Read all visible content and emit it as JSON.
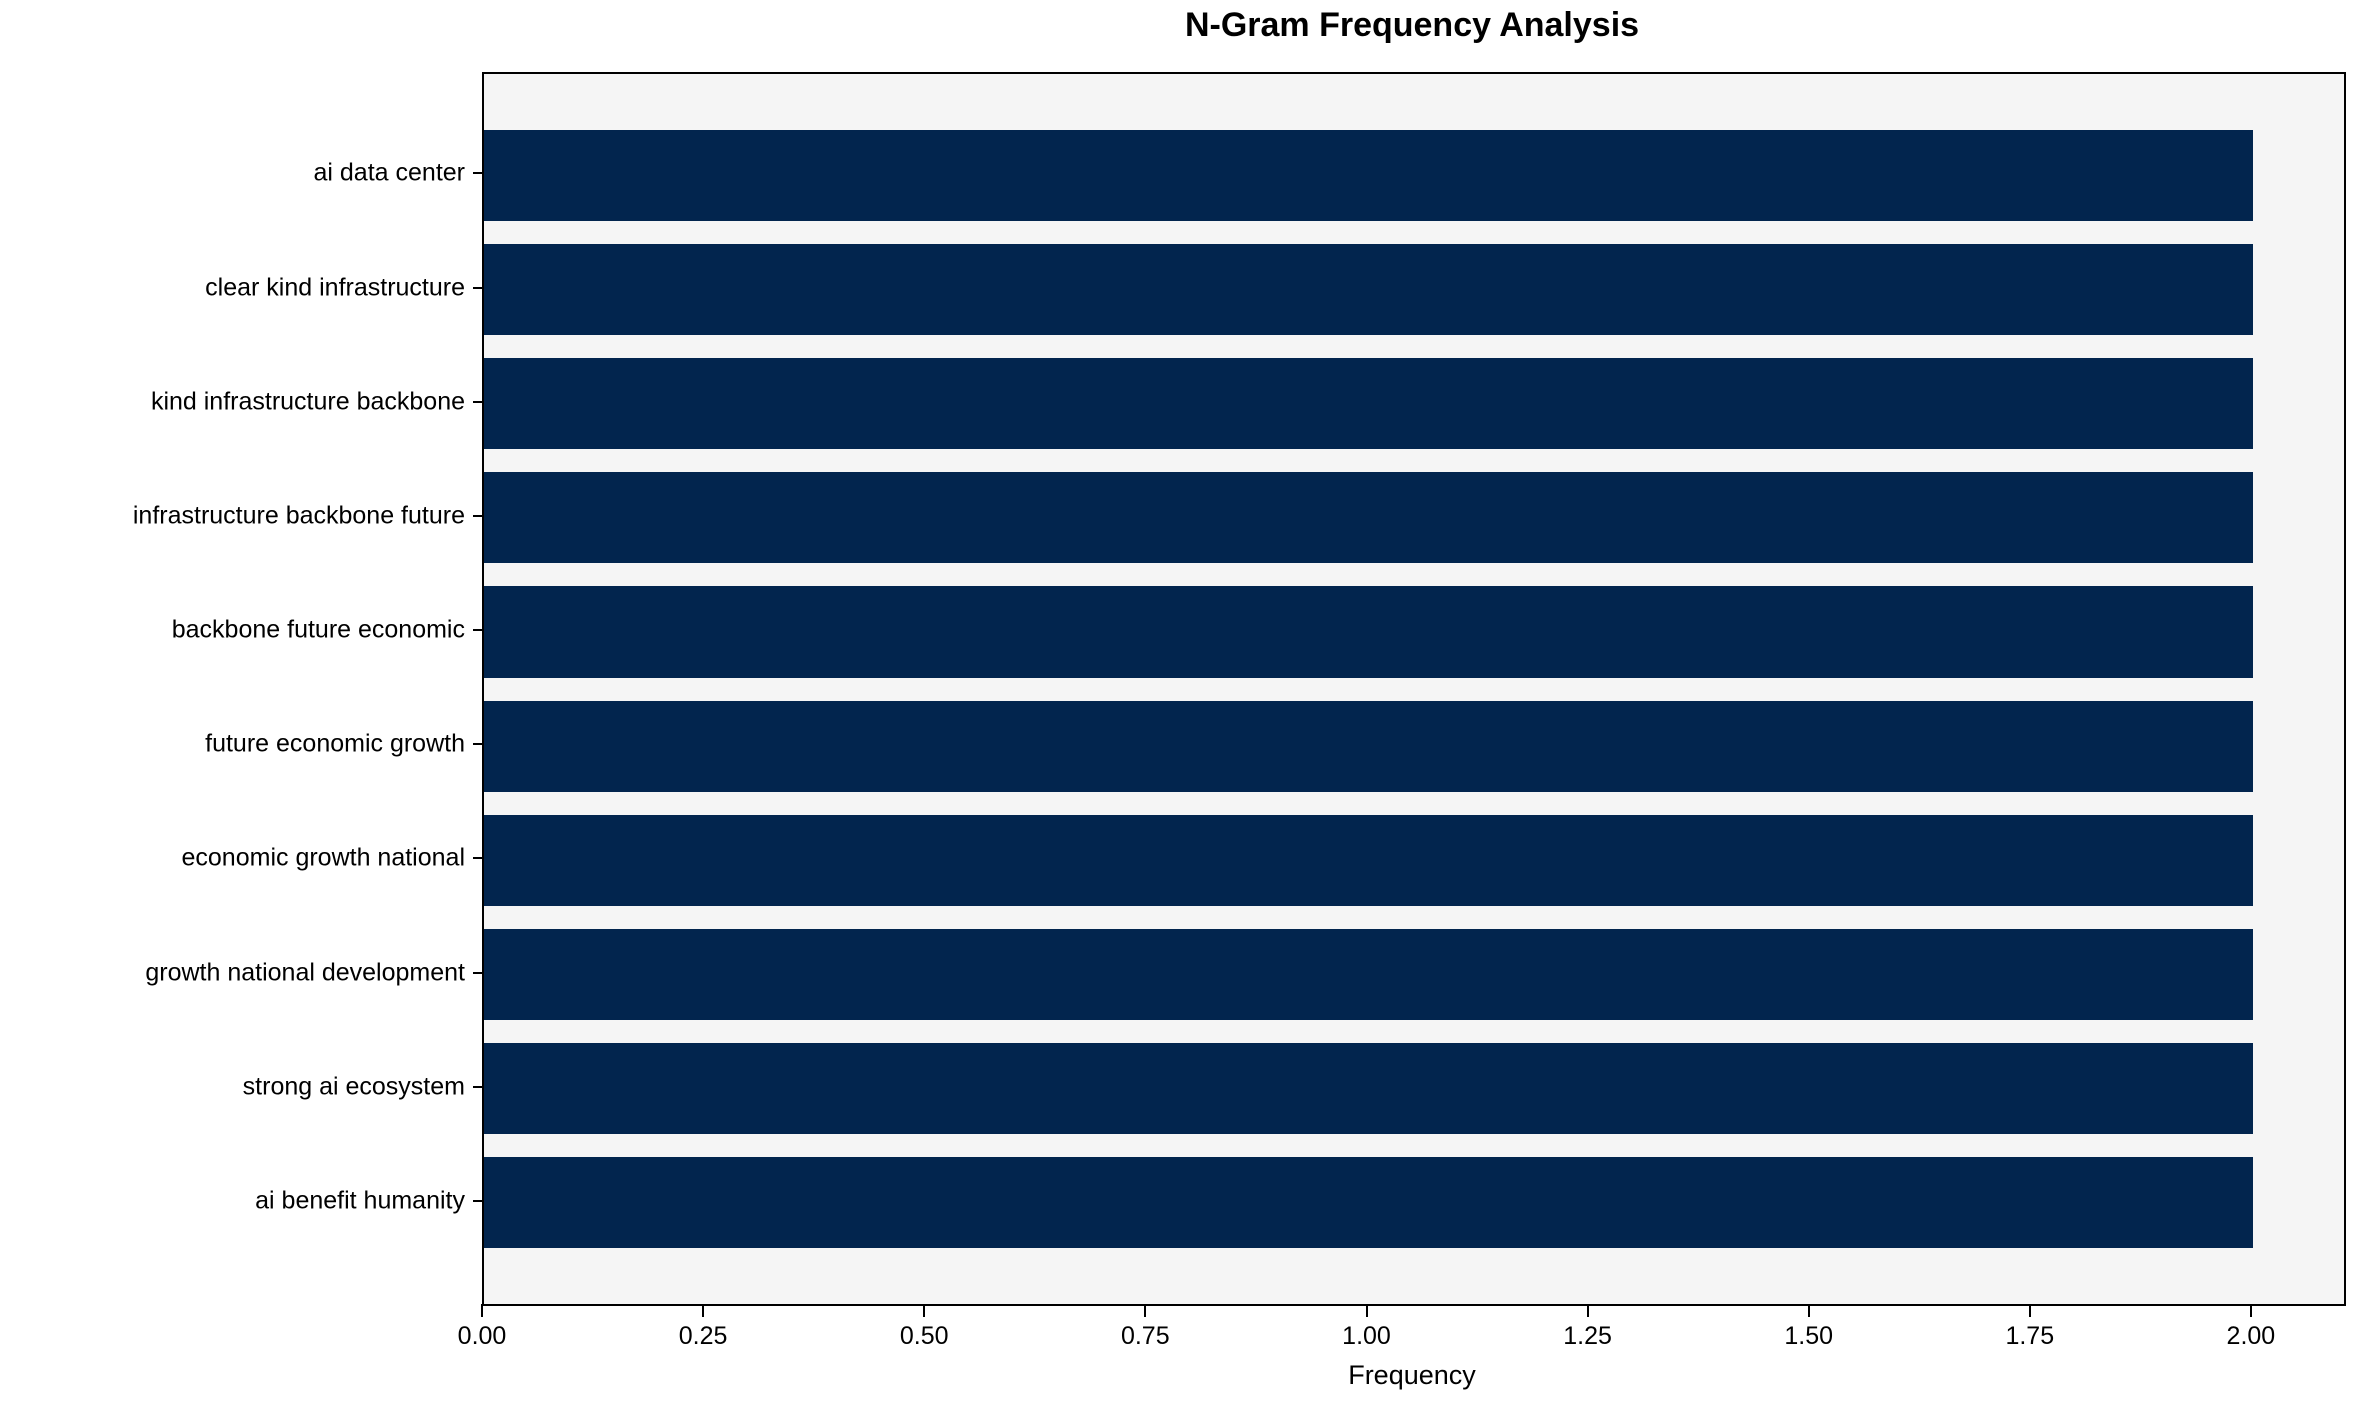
{
  "chart_data": {
    "type": "bar",
    "orientation": "horizontal",
    "title": "N-Gram Frequency Analysis",
    "xlabel": "Frequency",
    "ylabel": "",
    "categories": [
      "ai data center",
      "clear kind infrastructure",
      "kind infrastructure backbone",
      "infrastructure backbone future",
      "backbone future economic",
      "future economic growth",
      "economic growth national",
      "growth national development",
      "strong ai ecosystem",
      "ai benefit humanity"
    ],
    "values": [
      2,
      2,
      2,
      2,
      2,
      2,
      2,
      2,
      2,
      2
    ],
    "xlim": [
      0,
      2.103
    ],
    "xticks": {
      "values": [
        0,
        0.25,
        0.5,
        0.75,
        1.0,
        1.25,
        1.5,
        1.75,
        2.0
      ],
      "labels": [
        "0.00",
        "0.25",
        "0.50",
        "0.75",
        "1.00",
        "1.25",
        "1.50",
        "1.75",
        "2.00"
      ]
    },
    "grid": false,
    "legend": null,
    "colors": {
      "bar": "#02254e",
      "plot_background": "#f5f5f5",
      "figure_background": "#ffffff",
      "axis": "#000000",
      "text": "#000000"
    }
  }
}
